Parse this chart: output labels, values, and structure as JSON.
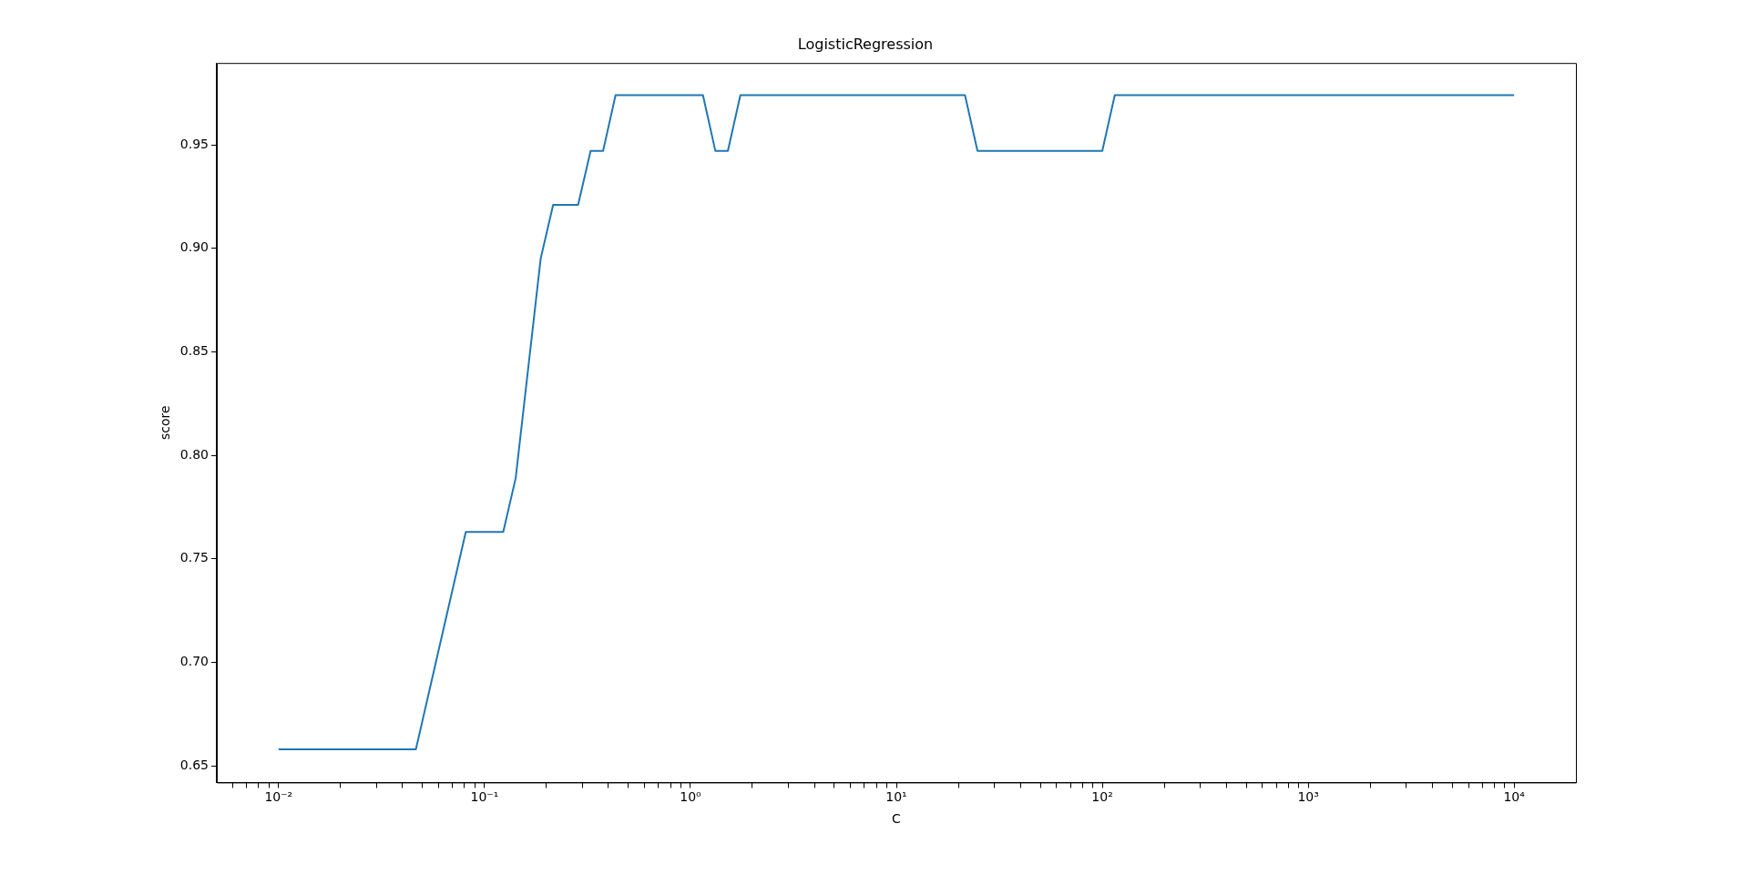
{
  "chart_data": {
    "type": "line",
    "title": "LogisticRegression",
    "xlabel": "C",
    "ylabel": "score",
    "log": "x",
    "grid": false,
    "legend": false,
    "series": [
      {
        "color": "#1f77b4",
        "x": [
          0.01,
          0.04642,
          0.08111,
          0.1233,
          0.1417,
          0.1874,
          0.2154,
          0.2848,
          0.3275,
          0.3765,
          0.4329,
          1.15,
          1.322,
          1.52,
          1.748,
          21.54,
          24.77,
          100,
          115.0,
          10000
        ],
        "values": [
          0.658,
          0.658,
          0.763,
          0.763,
          0.789,
          0.895,
          0.921,
          0.921,
          0.947,
          0.947,
          0.974,
          0.974,
          0.947,
          0.947,
          0.974,
          0.974,
          0.947,
          0.947,
          0.974,
          0.974
        ]
      }
    ],
    "xlim": [
      0.00501,
      19953
    ],
    "xticks": [
      {
        "value": 0.006,
        "label": null
      },
      {
        "value": 0.007,
        "label": null
      },
      {
        "value": 0.008,
        "label": null
      },
      {
        "value": 0.009,
        "label": null
      },
      {
        "value": 0.01,
        "label": "10⁻²"
      },
      {
        "value": 0.02,
        "label": null
      },
      {
        "value": 0.03,
        "label": null
      },
      {
        "value": 0.04,
        "label": null
      },
      {
        "value": 0.05,
        "label": null
      },
      {
        "value": 0.06,
        "label": null
      },
      {
        "value": 0.07,
        "label": null
      },
      {
        "value": 0.08,
        "label": null
      },
      {
        "value": 0.09,
        "label": null
      },
      {
        "value": 0.1,
        "label": "10⁻¹"
      },
      {
        "value": 0.2,
        "label": null
      },
      {
        "value": 0.3,
        "label": null
      },
      {
        "value": 0.4,
        "label": null
      },
      {
        "value": 0.5,
        "label": null
      },
      {
        "value": 0.6,
        "label": null
      },
      {
        "value": 0.7,
        "label": null
      },
      {
        "value": 0.8,
        "label": null
      },
      {
        "value": 0.9,
        "label": null
      },
      {
        "value": 1,
        "label": "10⁰"
      },
      {
        "value": 2,
        "label": null
      },
      {
        "value": 3,
        "label": null
      },
      {
        "value": 4,
        "label": null
      },
      {
        "value": 5,
        "label": null
      },
      {
        "value": 6,
        "label": null
      },
      {
        "value": 7,
        "label": null
      },
      {
        "value": 8,
        "label": null
      },
      {
        "value": 9,
        "label": null
      },
      {
        "value": 10,
        "label": "10¹"
      },
      {
        "value": 20,
        "label": null
      },
      {
        "value": 30,
        "label": null
      },
      {
        "value": 40,
        "label": null
      },
      {
        "value": 50,
        "label": null
      },
      {
        "value": 60,
        "label": null
      },
      {
        "value": 70,
        "label": null
      },
      {
        "value": 80,
        "label": null
      },
      {
        "value": 90,
        "label": null
      },
      {
        "value": 100,
        "label": "10²"
      },
      {
        "value": 200,
        "label": null
      },
      {
        "value": 300,
        "label": null
      },
      {
        "value": 400,
        "label": null
      },
      {
        "value": 500,
        "label": null
      },
      {
        "value": 600,
        "label": null
      },
      {
        "value": 700,
        "label": null
      },
      {
        "value": 800,
        "label": null
      },
      {
        "value": 900,
        "label": null
      },
      {
        "value": 1000,
        "label": "10³"
      },
      {
        "value": 2000,
        "label": null
      },
      {
        "value": 3000,
        "label": null
      },
      {
        "value": 4000,
        "label": null
      },
      {
        "value": 5000,
        "label": null
      },
      {
        "value": 6000,
        "label": null
      },
      {
        "value": 7000,
        "label": null
      },
      {
        "value": 8000,
        "label": null
      },
      {
        "value": 9000,
        "label": null
      },
      {
        "value": 10000,
        "label": "10⁴"
      }
    ],
    "ylim": [
      0.642,
      0.9895
    ],
    "yticks": [
      0.65,
      {
        "value": 0.7,
        "label": "0.70"
      },
      0.75,
      {
        "value": 0.8,
        "label": "0.80"
      },
      0.85,
      {
        "value": 0.9,
        "label": "0.90"
      },
      0.95
    ]
  }
}
